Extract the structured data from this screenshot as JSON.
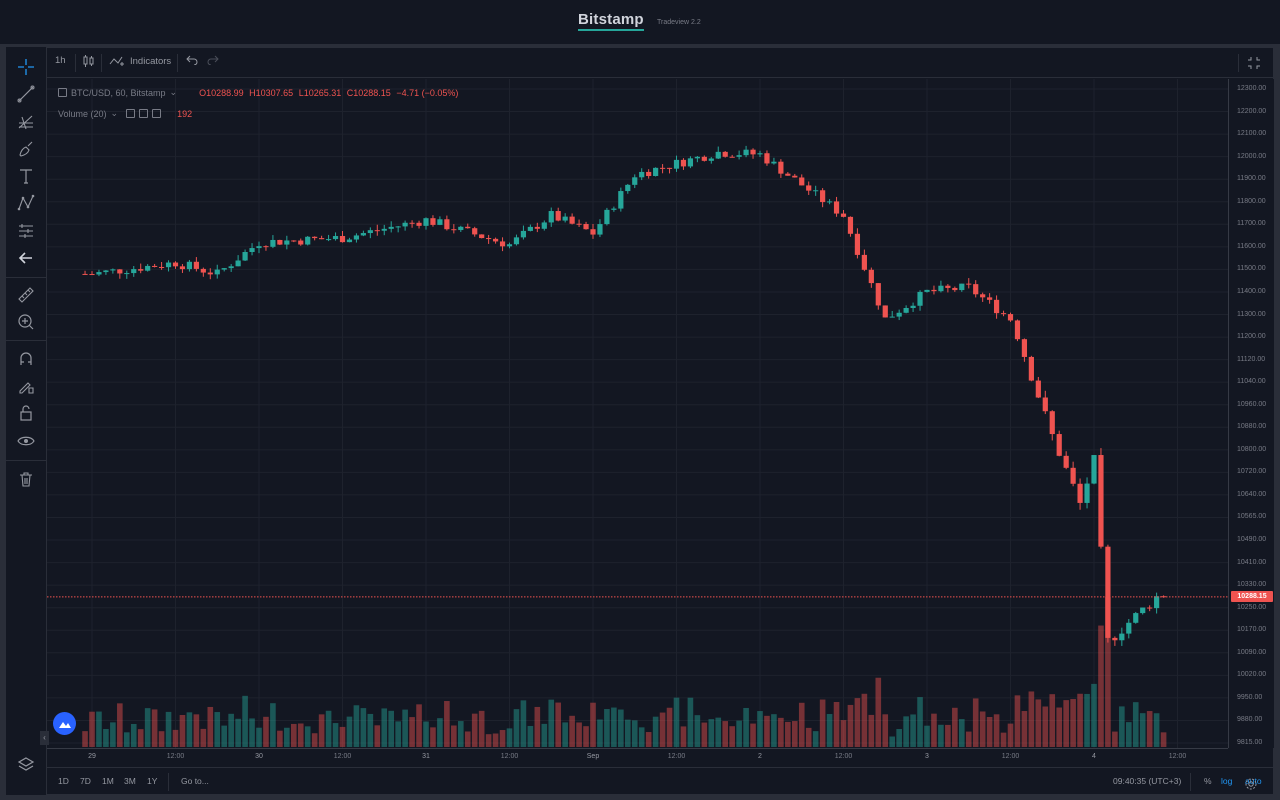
{
  "header": {
    "brand": "Bitstamp",
    "subtitle": "Tradeview 2.2"
  },
  "toolbar": {
    "interval": "1h",
    "indicators_label": "Indicators"
  },
  "legend": {
    "symbol": "BTC/USD, 60, Bitstamp",
    "open": "O10288.99",
    "high": "H10307.65",
    "low": "L10265.31",
    "close": "C10288.15",
    "change": "−4.71 (−0.05%)",
    "volume_label": "Volume (20)",
    "volume_value": "192"
  },
  "price_axis": {
    "labels": [
      "12300.00",
      "12200.00",
      "12100.00",
      "12000.00",
      "11900.00",
      "11800.00",
      "11700.00",
      "11600.00",
      "11500.00",
      "11400.00",
      "11300.00",
      "11200.00",
      "11120.00",
      "11040.00",
      "10960.00",
      "10880.00",
      "10800.00",
      "10720.00",
      "10640.00",
      "10565.00",
      "10490.00",
      "10410.00",
      "10330.00",
      "10250.00",
      "10170.00",
      "10090.00",
      "10020.00",
      "9950.00",
      "9880.00",
      "9815.00"
    ],
    "last_price": "10288.15"
  },
  "time_axis": {
    "labels": [
      {
        "text": "29",
        "bold": true
      },
      {
        "text": "12:00",
        "bold": false
      },
      {
        "text": "30",
        "bold": true
      },
      {
        "text": "12:00",
        "bold": false
      },
      {
        "text": "31",
        "bold": true
      },
      {
        "text": "12:00",
        "bold": false
      },
      {
        "text": "Sep",
        "bold": true
      },
      {
        "text": "12:00",
        "bold": false
      },
      {
        "text": "2",
        "bold": true
      },
      {
        "text": "12:00",
        "bold": false
      },
      {
        "text": "3",
        "bold": true
      },
      {
        "text": "12:00",
        "bold": false
      },
      {
        "text": "4",
        "bold": true
      },
      {
        "text": "12:00",
        "bold": false
      }
    ]
  },
  "bottom": {
    "ranges": [
      "1D",
      "7D",
      "1M",
      "3M",
      "1Y"
    ],
    "goto": "Go to...",
    "clock": "09:40:35 (UTC+3)",
    "percent": "%",
    "log": "log",
    "auto": "auto"
  },
  "colors": {
    "up": "#26a69a",
    "down": "#ef5350",
    "background": "#131722",
    "grid": "#1e222d"
  },
  "chart_data": {
    "type": "candlestick",
    "symbol": "BTC/USD",
    "interval": "60",
    "exchange": "Bitstamp",
    "ylim": [
      9815,
      12300
    ],
    "anchors": [
      {
        "x": "29 00:00",
        "close": 11480
      },
      {
        "x": "29 12:00",
        "close": 11530
      },
      {
        "x": "29 18:00",
        "close": 11480
      },
      {
        "x": "30 00:00",
        "close": 11620
      },
      {
        "x": "30 12:00",
        "close": 11640
      },
      {
        "x": "31 00:00",
        "close": 11720
      },
      {
        "x": "31 12:00",
        "close": 11610
      },
      {
        "x": "31 18:00",
        "close": 11740
      },
      {
        "x": "Sep 00:00",
        "close": 11660
      },
      {
        "x": "Sep 06:00",
        "close": 11920
      },
      {
        "x": "Sep 18:00",
        "close": 12020
      },
      {
        "x": "2 00:00",
        "close": 12010
      },
      {
        "x": "2 12:00",
        "close": 11740
      },
      {
        "x": "2 18:00",
        "close": 11280
      },
      {
        "x": "3 00:00",
        "close": 11400
      },
      {
        "x": "3 06:00",
        "close": 11420
      },
      {
        "x": "3 12:00",
        "close": 11280
      },
      {
        "x": "3 18:00",
        "close": 10850
      },
      {
        "x": "3 22:00",
        "close": 10610
      },
      {
        "x": "4 00:00",
        "close": 10760
      },
      {
        "x": "4 02:00",
        "close": 10130
      },
      {
        "x": "4 09:00",
        "close": 10288.15
      }
    ],
    "volume": {
      "period": 20,
      "last": 192
    }
  }
}
